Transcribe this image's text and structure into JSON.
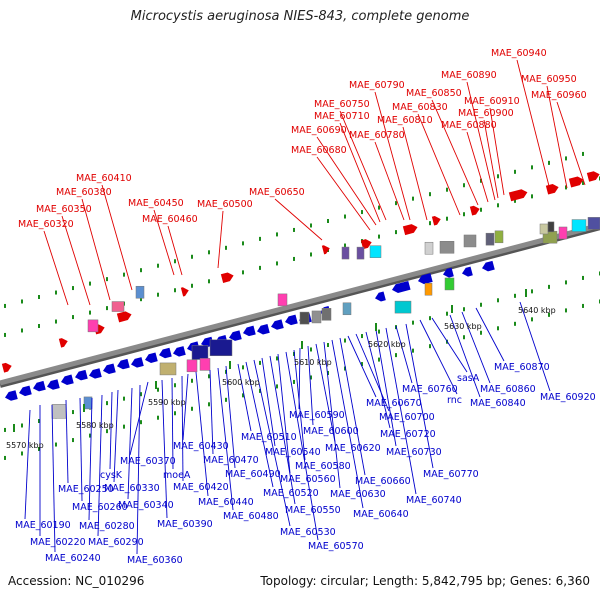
{
  "title": "Microcystis aeruginosa NIES-843, complete genome",
  "footer": {
    "accession": "Accession: NC_010296",
    "stats": "Topology: circular; Length: 5,842,795 bp; Genes: 6,360"
  },
  "colors": {
    "top_genes": "#e00000",
    "bottom_genes": "#0000cc",
    "backbone": "#8a8a8a",
    "ticks": "#1a8a1a"
  },
  "scale_ticks": [
    "5570 kbp",
    "5580 kbp",
    "5590 kbp",
    "5600 kbp",
    "5610 kbp",
    "5620 kbp",
    "5630 kbp",
    "5640 kbp"
  ],
  "top_labels": [
    "MAE_60320",
    "MAE_60350",
    "MAE_60380",
    "MAE_60410",
    "MAE_60450",
    "MAE_60460",
    "MAE_60500",
    "MAE_60650",
    "MAE_60680",
    "MAE_60690",
    "MAE_60710",
    "MAE_60750",
    "MAE_60790",
    "MAE_60780",
    "MAE_60810",
    "MAE_60830",
    "MAE_60850",
    "MAE_60880",
    "MAE_60890",
    "MAE_60900",
    "MAE_60910",
    "MAE_60940",
    "MAE_60950",
    "MAE_60960"
  ],
  "bottom_labels": [
    "MAE_60190",
    "MAE_60220",
    "MAE_60240",
    "MAE_60250",
    "MAE_60260",
    "MAE_60280",
    "MAE_60290",
    "cysK",
    "MAE_60330",
    "MAE_60340",
    "MAE_60360",
    "MAE_60370",
    "MAE_60390",
    "moeA",
    "MAE_60420",
    "MAE_60430",
    "MAE_60440",
    "MAE_60470",
    "MAE_60480",
    "MAE_60490",
    "MAE_60510",
    "MAE_60520",
    "MAE_60530",
    "MAE_60540",
    "MAE_60550",
    "MAE_60560",
    "MAE_60570",
    "MAE_60580",
    "MAE_60590",
    "MAE_60600",
    "MAE_60620",
    "MAE_60630",
    "MAE_60640",
    "MAE_60660",
    "MAE_60670",
    "MAE_60700",
    "MAE_60720",
    "MAE_60730",
    "MAE_60740",
    "MAE_60760",
    "MAE_60770",
    "rnc",
    "sasA",
    "MAE_60840",
    "MAE_60860",
    "MAE_60870",
    "MAE_60920"
  ]
}
